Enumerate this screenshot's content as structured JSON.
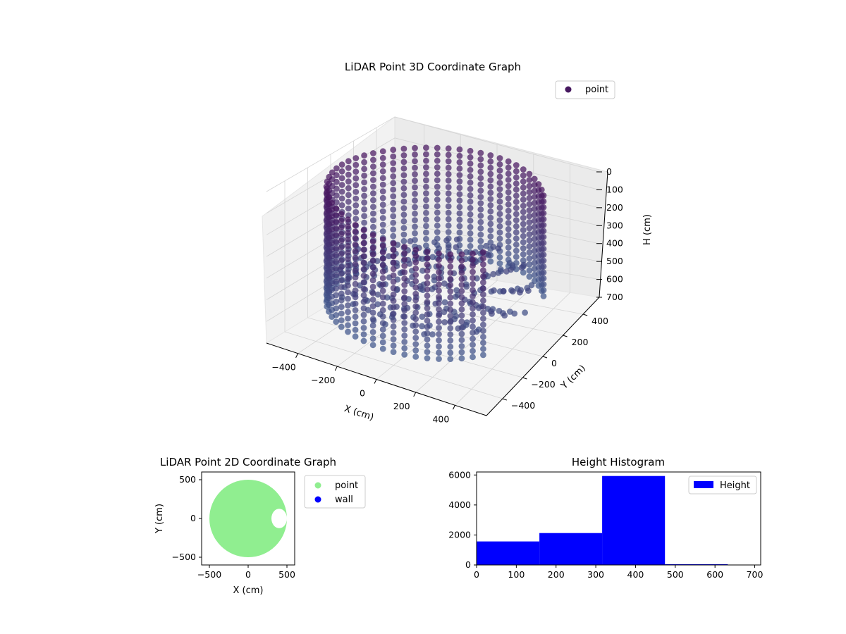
{
  "chart_data": [
    {
      "type": "scatter",
      "projection": "3d",
      "title": "LiDAR Point 3D Coordinate Graph",
      "xlabel": "X (cm)",
      "ylabel": "Y (cm)",
      "zlabel": "H (cm)",
      "x_ticks": [
        "−400",
        "−200",
        "0",
        "200",
        "400"
      ],
      "y_ticks": [
        "−400",
        "−200",
        "0",
        "200",
        "400"
      ],
      "z_ticks": [
        "0",
        "100",
        "200",
        "300",
        "400",
        "500",
        "600",
        "700"
      ],
      "xlim": [
        -560,
        560
      ],
      "ylim": [
        -560,
        560
      ],
      "zlim": [
        0,
        700
      ],
      "z_inverted": true,
      "grid": true,
      "legend": {
        "placement": "top-right",
        "entries": [
          "point"
        ]
      },
      "series": [
        {
          "name": "point",
          "shape": "cylindrical wall",
          "radius": 500,
          "height_range": [
            30,
            600
          ],
          "opening_angle_deg": [
            330,
            30
          ],
          "colormap": "viridis-dark (dark purple at low H, slate-blue at high H)"
        }
      ]
    },
    {
      "type": "scatter",
      "title": "LiDAR Point 2D Coordinate Graph",
      "xlabel": "X (cm)",
      "ylabel": "Y (cm)",
      "x_ticks": [
        "−500",
        "0",
        "500"
      ],
      "y_ticks": [
        "−500",
        "0",
        "500"
      ],
      "xlim": [
        -600,
        600
      ],
      "ylim": [
        -600,
        600
      ],
      "legend": {
        "placement": "outside-right",
        "entries": [
          "point",
          "wall"
        ]
      },
      "series": [
        {
          "name": "point",
          "color": "#90ee90",
          "shape": "disc",
          "center": [
            0,
            0
          ],
          "radius": 500
        },
        {
          "name": "wall",
          "color": "#0000ff"
        }
      ],
      "void": {
        "shape": "notch",
        "center": [
          400,
          0
        ],
        "size_x": 200,
        "size_y": 250
      }
    },
    {
      "type": "bar",
      "title": "Height Histogram",
      "xlabel": "",
      "ylabel": "",
      "xlim": [
        0,
        715
      ],
      "ylim": [
        0,
        6200
      ],
      "x_ticks": [
        0,
        100,
        200,
        300,
        400,
        500,
        600,
        700
      ],
      "y_ticks": [
        0,
        2000,
        4000,
        6000
      ],
      "bin_edges": [
        0,
        158,
        316,
        474,
        632,
        715
      ],
      "values": [
        1570,
        2130,
        5930,
        50,
        0
      ],
      "color": "#0000ff",
      "legend": {
        "placement": "top-right",
        "entries": [
          "Height"
        ]
      }
    }
  ]
}
